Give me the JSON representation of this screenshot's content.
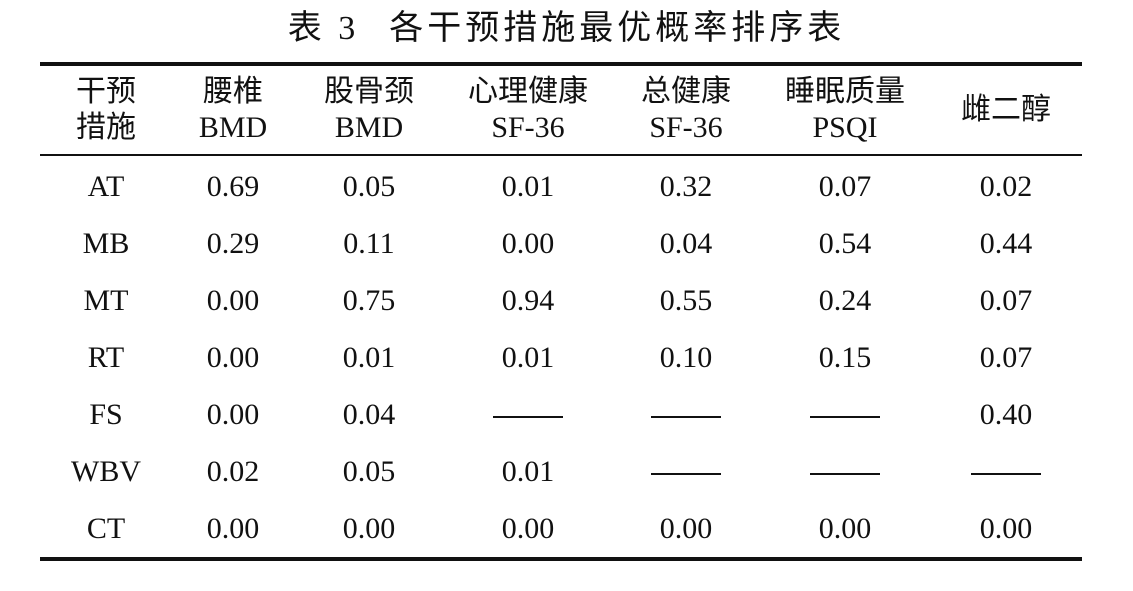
{
  "caption": {
    "number": "表 3",
    "title": "各干预措施最优概率排序表"
  },
  "table": {
    "headers": [
      [
        "干预",
        "措施"
      ],
      [
        "腰椎",
        "BMD"
      ],
      [
        "股骨颈",
        "BMD"
      ],
      [
        "心理健康",
        "SF-36"
      ],
      [
        "总健康",
        "SF-36"
      ],
      [
        "睡眠质量",
        "PSQI"
      ],
      [
        "雌二醇"
      ]
    ],
    "rows": [
      [
        "AT",
        "0.69",
        "0.05",
        "0.01",
        "0.32",
        "0.07",
        "0.02"
      ],
      [
        "MB",
        "0.29",
        "0.11",
        "0.00",
        "0.04",
        "0.54",
        "0.44"
      ],
      [
        "MT",
        "0.00",
        "0.75",
        "0.94",
        "0.55",
        "0.24",
        "0.07"
      ],
      [
        "RT",
        "0.00",
        "0.01",
        "0.01",
        "0.10",
        "0.15",
        "0.07"
      ],
      [
        "FS",
        "0.00",
        "0.04",
        "——",
        "——",
        "——",
        "0.40"
      ],
      [
        "WBV",
        "0.02",
        "0.05",
        "0.01",
        "——",
        "——",
        "——"
      ],
      [
        "CT",
        "0.00",
        "0.00",
        "0.00",
        "0.00",
        "0.00",
        "0.00"
      ]
    ],
    "missing_marker": "——"
  }
}
